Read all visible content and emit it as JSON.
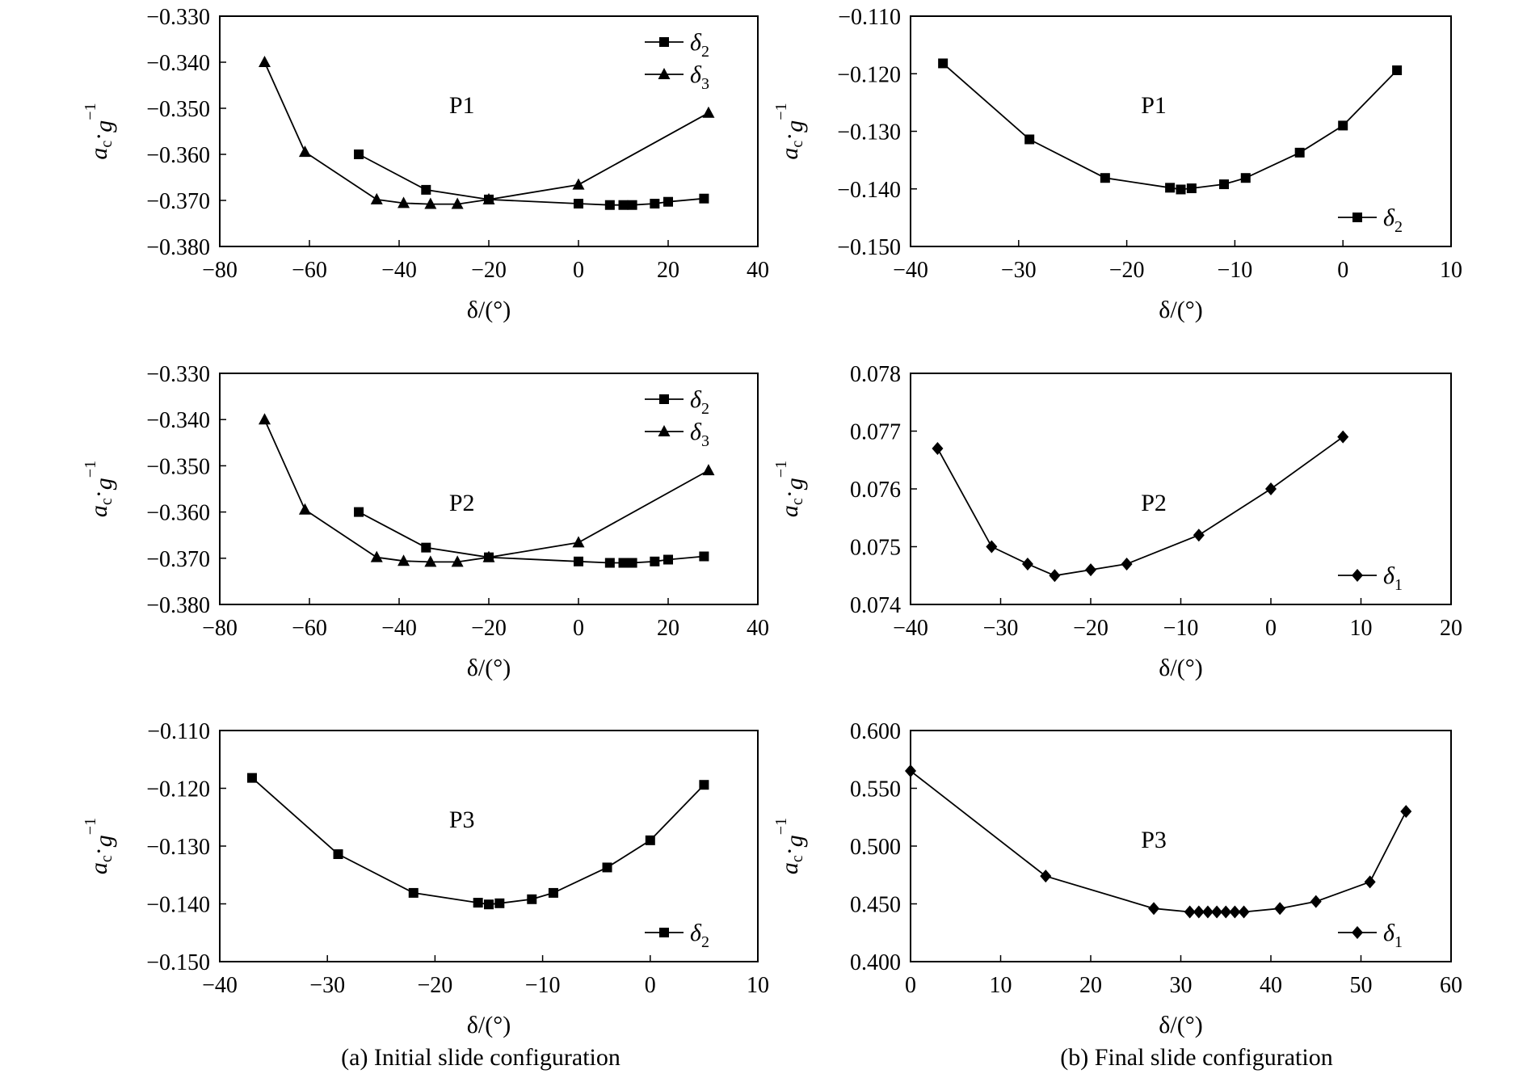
{
  "captions": {
    "a": "(a) Initial slide configuration",
    "b": "(b) Final slide configuration"
  },
  "chart_data": [
    {
      "type": "line",
      "id": "a1",
      "label": "P1",
      "xlabel": "δ/(°)",
      "ylabel": "ac·g−1",
      "xlim": [
        -80,
        40
      ],
      "ylim": [
        -0.38,
        -0.33
      ],
      "xticks": [
        -80,
        -60,
        -40,
        -20,
        0,
        20,
        40
      ],
      "xtick_labels": [
        "−80",
        "−60",
        "−40",
        "−20",
        "0",
        "20",
        "40"
      ],
      "yticks": [
        -0.33,
        -0.34,
        -0.35,
        -0.36,
        -0.37,
        -0.38
      ],
      "ytick_labels": [
        "−0.330",
        "−0.340",
        "−0.350",
        "−0.360",
        "−0.370",
        "−0.380"
      ],
      "grid": false,
      "legend_position": "top-right",
      "series": [
        {
          "name": "δ2",
          "marker": "square",
          "x": [
            -49,
            -34,
            -20,
            0,
            7,
            10,
            12,
            17,
            20,
            28
          ],
          "y": [
            -0.36,
            -0.3677,
            -0.3698,
            -0.3707,
            -0.371,
            -0.371,
            -0.371,
            -0.3707,
            -0.3703,
            -0.3696
          ]
        },
        {
          "name": "δ3",
          "marker": "triangle",
          "x": [
            -70,
            -61,
            -45,
            -39,
            -33,
            -27,
            -20,
            0,
            29
          ],
          "y": [
            -0.34,
            -0.3595,
            -0.3698,
            -0.3706,
            -0.3708,
            -0.3708,
            -0.3698,
            -0.3666,
            -0.351
          ]
        }
      ]
    },
    {
      "type": "line",
      "id": "b1",
      "label": "P1",
      "xlabel": "δ/(°)",
      "ylabel": "ac·g−1",
      "xlim": [
        -40,
        10
      ],
      "ylim": [
        -0.15,
        -0.11
      ],
      "xticks": [
        -40,
        -30,
        -20,
        -10,
        0,
        10
      ],
      "xtick_labels": [
        "−40",
        "−30",
        "−20",
        "−10",
        "0",
        "10"
      ],
      "yticks": [
        -0.11,
        -0.12,
        -0.13,
        -0.14,
        -0.15
      ],
      "ytick_labels": [
        "−0.110",
        "−0.120",
        "−0.130",
        "−0.140",
        "−0.150"
      ],
      "grid": false,
      "legend_position": "bottom-right",
      "series": [
        {
          "name": "δ2",
          "marker": "square",
          "x": [
            -37,
            -29,
            -22,
            -16,
            -15,
            -14,
            -11,
            -9,
            -4,
            0,
            5
          ],
          "y": [
            -0.1182,
            -0.1314,
            -0.1381,
            -0.1398,
            -0.1401,
            -0.1399,
            -0.1392,
            -0.1381,
            -0.1337,
            -0.129,
            -0.1194
          ]
        }
      ]
    },
    {
      "type": "line",
      "id": "a2",
      "label": "P2",
      "xlabel": "δ/(°)",
      "ylabel": "ac·g−1",
      "xlim": [
        -80,
        40
      ],
      "ylim": [
        -0.38,
        -0.33
      ],
      "xticks": [
        -80,
        -60,
        -40,
        -20,
        0,
        20,
        40
      ],
      "xtick_labels": [
        "−80",
        "−60",
        "−40",
        "−20",
        "0",
        "20",
        "40"
      ],
      "yticks": [
        -0.33,
        -0.34,
        -0.35,
        -0.36,
        -0.37,
        -0.38
      ],
      "ytick_labels": [
        "−0.330",
        "−0.340",
        "−0.350",
        "−0.360",
        "−0.370",
        "−0.380"
      ],
      "grid": false,
      "legend_position": "top-right",
      "series": [
        {
          "name": "δ2",
          "marker": "square",
          "x": [
            -49,
            -34,
            -20,
            0,
            7,
            10,
            12,
            17,
            20,
            28
          ],
          "y": [
            -0.36,
            -0.3677,
            -0.3698,
            -0.3707,
            -0.371,
            -0.371,
            -0.371,
            -0.3707,
            -0.3703,
            -0.3696
          ]
        },
        {
          "name": "δ3",
          "marker": "triangle",
          "x": [
            -70,
            -61,
            -45,
            -39,
            -33,
            -27,
            -20,
            0,
            29
          ],
          "y": [
            -0.34,
            -0.3595,
            -0.3698,
            -0.3706,
            -0.3708,
            -0.3708,
            -0.3698,
            -0.3666,
            -0.351
          ]
        }
      ]
    },
    {
      "type": "line",
      "id": "b2",
      "label": "P2",
      "xlabel": "δ/(°)",
      "ylabel": "ac·g−1",
      "xlim": [
        -40,
        20
      ],
      "ylim": [
        0.074,
        0.078
      ],
      "xticks": [
        -40,
        -30,
        -20,
        -10,
        0,
        10,
        20
      ],
      "xtick_labels": [
        "−40",
        "−30",
        "−20",
        "−10",
        "0",
        "10",
        "20"
      ],
      "yticks": [
        0.078,
        0.077,
        0.076,
        0.075,
        0.074
      ],
      "ytick_labels": [
        "0.078",
        "0.077",
        "0.076",
        "0.075",
        "0.074"
      ],
      "grid": false,
      "legend_position": "bottom-right",
      "series": [
        {
          "name": "δ1",
          "marker": "diamond",
          "x": [
            -37,
            -31,
            -27,
            -24,
            -20,
            -16,
            -8,
            0,
            8
          ],
          "y": [
            0.0767,
            0.075,
            0.0747,
            0.0745,
            0.0746,
            0.0747,
            0.0752,
            0.076,
            0.0769
          ]
        }
      ]
    },
    {
      "type": "line",
      "id": "a3",
      "label": "P3",
      "xlabel": "δ/(°)",
      "ylabel": "ac·g−1",
      "xlim": [
        -40,
        10
      ],
      "ylim": [
        -0.15,
        -0.11
      ],
      "xticks": [
        -40,
        -30,
        -20,
        -10,
        0,
        10
      ],
      "xtick_labels": [
        "−40",
        "−30",
        "−20",
        "−10",
        "0",
        "10"
      ],
      "yticks": [
        -0.11,
        -0.12,
        -0.13,
        -0.14,
        -0.15
      ],
      "ytick_labels": [
        "−0.110",
        "−0.120",
        "−0.130",
        "−0.140",
        "−0.150"
      ],
      "grid": false,
      "legend_position": "bottom-right",
      "series": [
        {
          "name": "δ2",
          "marker": "square",
          "x": [
            -37,
            -29,
            -22,
            -16,
            -15,
            -14,
            -11,
            -9,
            -4,
            0,
            5
          ],
          "y": [
            -0.1182,
            -0.1314,
            -0.1381,
            -0.1398,
            -0.1401,
            -0.1399,
            -0.1392,
            -0.1381,
            -0.1337,
            -0.129,
            -0.1194
          ]
        }
      ]
    },
    {
      "type": "line",
      "id": "b3",
      "label": "P3",
      "xlabel": "δ/(°)",
      "ylabel": "ac·g−1",
      "xlim": [
        0,
        60
      ],
      "ylim": [
        0.4,
        0.6
      ],
      "xticks": [
        0,
        10,
        20,
        30,
        40,
        50,
        60
      ],
      "xtick_labels": [
        "0",
        "10",
        "20",
        "30",
        "40",
        "50",
        "60"
      ],
      "yticks": [
        0.6,
        0.55,
        0.5,
        0.45,
        0.4
      ],
      "ytick_labels": [
        "0.600",
        "0.550",
        "0.500",
        "0.450",
        "0.400"
      ],
      "grid": false,
      "legend_position": "bottom-right",
      "series": [
        {
          "name": "δ1",
          "marker": "diamond",
          "x": [
            0,
            15,
            27,
            31,
            32,
            33,
            34,
            35,
            36,
            37,
            41,
            45,
            51,
            55
          ],
          "y": [
            0.565,
            0.474,
            0.446,
            0.443,
            0.443,
            0.443,
            0.443,
            0.443,
            0.443,
            0.443,
            0.446,
            0.452,
            0.469,
            0.53
          ]
        }
      ]
    }
  ]
}
